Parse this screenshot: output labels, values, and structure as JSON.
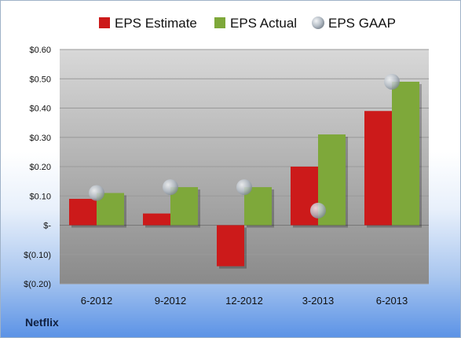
{
  "company": "Netflix",
  "chart_data": {
    "type": "bar",
    "categories": [
      "6-2012",
      "9-2012",
      "12-2012",
      "3-2013",
      "6-2013"
    ],
    "series": [
      {
        "name": "EPS Estimate",
        "kind": "bar",
        "color": "#cc1a1a",
        "values": [
          0.09,
          0.04,
          -0.14,
          0.2,
          0.39
        ]
      },
      {
        "name": "EPS Actual",
        "kind": "bar",
        "color": "#7ea83a",
        "values": [
          0.11,
          0.13,
          0.13,
          0.31,
          0.49
        ]
      },
      {
        "name": "EPS GAAP",
        "kind": "marker",
        "color": "#b8c0c8",
        "values": [
          0.11,
          0.13,
          0.13,
          0.05,
          0.49
        ]
      }
    ],
    "yticks": [
      0.6,
      0.5,
      0.4,
      0.3,
      0.2,
      0.1,
      0,
      -0.1,
      -0.2
    ],
    "ytick_labels": [
      "$0.60",
      "$0.50",
      "$0.40",
      "$0.30",
      "$0.20",
      "$0.10",
      "$-",
      "$(0.10)",
      "$(0.20)"
    ],
    "ylim": [
      -0.2,
      0.6
    ],
    "grid": true,
    "legend_position": "top"
  }
}
